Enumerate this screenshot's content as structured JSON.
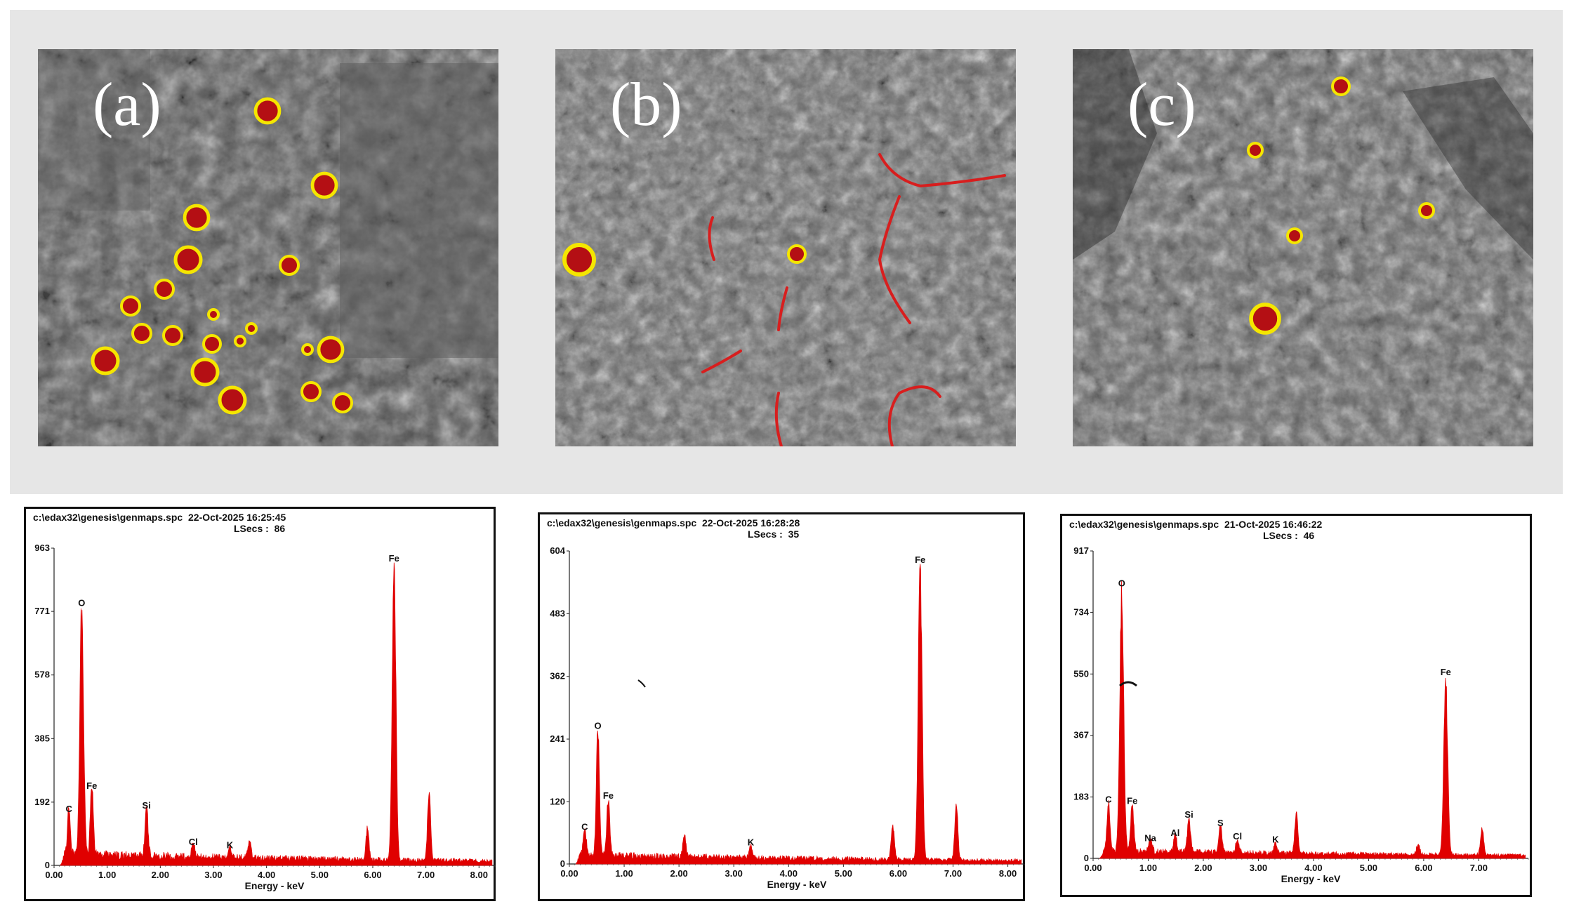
{
  "panels": [
    {
      "label": "(a)"
    },
    {
      "label": "(b)"
    },
    {
      "label": "(c)"
    }
  ],
  "colors": {
    "spectrum": "#e00000",
    "marker_fill": "#b40f14",
    "marker_ring": "#f5e600",
    "crack": "#d81e1e"
  },
  "chart_data": [
    {
      "type": "area",
      "header": "c:\\edax32\\genesis\\genmaps.spc  22-Oct-2025 16:25:45",
      "lsecs": "LSecs :  86",
      "xlabel": "Energy - keV",
      "xlim": [
        0,
        8.3
      ],
      "ylim": [
        0,
        963
      ],
      "xticks": [
        "0.00",
        "1.00",
        "2.00",
        "3.00",
        "4.00",
        "5.00",
        "6.00",
        "7.00",
        "8.00"
      ],
      "yticks": [
        "0",
        "192",
        "385",
        "578",
        "771",
        "963"
      ],
      "peaks": [
        {
          "label": "C",
          "x": 0.28,
          "y": 145
        },
        {
          "label": "O",
          "x": 0.52,
          "y": 770
        },
        {
          "label": "Fe",
          "x": 0.71,
          "y": 215
        },
        {
          "label": "Si",
          "x": 1.74,
          "y": 155
        },
        {
          "label": "Cl",
          "x": 2.62,
          "y": 45
        },
        {
          "label": "K",
          "x": 3.31,
          "y": 35
        },
        {
          "label": "Fe",
          "x": 6.4,
          "y": 905
        }
      ],
      "minor_peaks": [
        {
          "x": 7.06,
          "y": 220
        },
        {
          "x": 5.9,
          "y": 95
        },
        {
          "x": 3.68,
          "y": 55
        }
      ],
      "baseline": 30
    },
    {
      "type": "area",
      "header": "c:\\edax32\\genesis\\genmaps.spc  22-Oct-2025 16:28:28",
      "lsecs": "LSecs :  35",
      "xlabel": "Energy - keV",
      "xlim": [
        0,
        8.3
      ],
      "ylim": [
        0,
        604
      ],
      "xticks": [
        "0.00",
        "1.00",
        "2.00",
        "3.00",
        "4.00",
        "5.00",
        "6.00",
        "7.00",
        "8.00"
      ],
      "yticks": [
        "0",
        "120",
        "241",
        "362",
        "483",
        "604"
      ],
      "peaks": [
        {
          "label": "C",
          "x": 0.28,
          "y": 55
        },
        {
          "label": "O",
          "x": 0.52,
          "y": 250
        },
        {
          "label": "Fe",
          "x": 0.71,
          "y": 115
        },
        {
          "label": "K",
          "x": 3.31,
          "y": 25
        },
        {
          "label": "Fe",
          "x": 6.4,
          "y": 570
        }
      ],
      "minor_peaks": [
        {
          "x": 7.06,
          "y": 110
        },
        {
          "x": 5.9,
          "y": 70
        },
        {
          "x": 2.1,
          "y": 40
        }
      ],
      "baseline": 15
    },
    {
      "type": "area",
      "header": "c:\\edax32\\genesis\\genmaps.spc  21-Oct-2025 16:46:22",
      "lsecs": "LSecs :  46",
      "xlabel": "Energy - keV",
      "xlim": [
        0,
        7.9
      ],
      "ylim": [
        0,
        917
      ],
      "xticks": [
        "0.00",
        "1.00",
        "2.00",
        "3.00",
        "4.00",
        "5.00",
        "6.00",
        "7.00"
      ],
      "yticks": [
        "0",
        "183",
        "367",
        "550",
        "734",
        "917"
      ],
      "peaks": [
        {
          "label": "C",
          "x": 0.28,
          "y": 150
        },
        {
          "label": "O",
          "x": 0.52,
          "y": 795
        },
        {
          "label": "Fe",
          "x": 0.71,
          "y": 145
        },
        {
          "label": "Na",
          "x": 1.04,
          "y": 35
        },
        {
          "label": "Al",
          "x": 1.49,
          "y": 50
        },
        {
          "label": "Si",
          "x": 1.74,
          "y": 105
        },
        {
          "label": "S",
          "x": 2.31,
          "y": 80
        },
        {
          "label": "Cl",
          "x": 2.62,
          "y": 40
        },
        {
          "label": "K",
          "x": 3.31,
          "y": 30
        },
        {
          "label": "Fe",
          "x": 6.4,
          "y": 530
        }
      ],
      "minor_peaks": [
        {
          "x": 3.69,
          "y": 120
        },
        {
          "x": 7.06,
          "y": 80
        },
        {
          "x": 5.9,
          "y": 30
        }
      ],
      "baseline": 20
    }
  ]
}
